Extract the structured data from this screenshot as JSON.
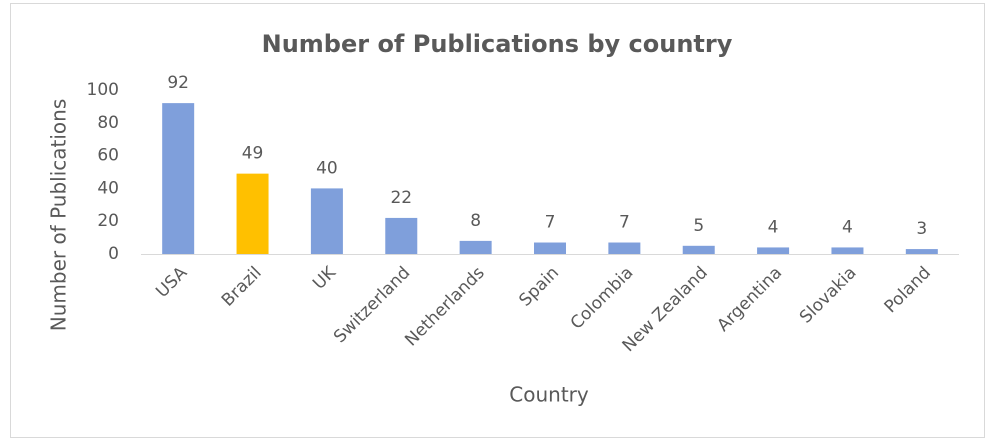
{
  "chart_data": {
    "type": "bar",
    "title": "Number of Publications by country",
    "x_label": "Country",
    "y_label": "Number of Publications",
    "categories": [
      "USA",
      "Brazil",
      "UK",
      "Switzerland",
      "Netherlands",
      "Spain",
      "Colombia",
      "New Zealand",
      "Argentina",
      "Slovakia",
      "Poland"
    ],
    "values": [
      92,
      49,
      40,
      22,
      8,
      7,
      7,
      5,
      4,
      4,
      3
    ],
    "colors": [
      "#7f9fdb",
      "#ffc000",
      "#7f9fdb",
      "#7f9fdb",
      "#7f9fdb",
      "#7f9fdb",
      "#7f9fdb",
      "#7f9fdb",
      "#7f9fdb",
      "#7f9fdb",
      "#7f9fdb"
    ],
    "ylim": [
      0,
      100
    ],
    "yticks": [
      0,
      20,
      40,
      60,
      80,
      100
    ],
    "grid": false,
    "data_labels": true
  }
}
